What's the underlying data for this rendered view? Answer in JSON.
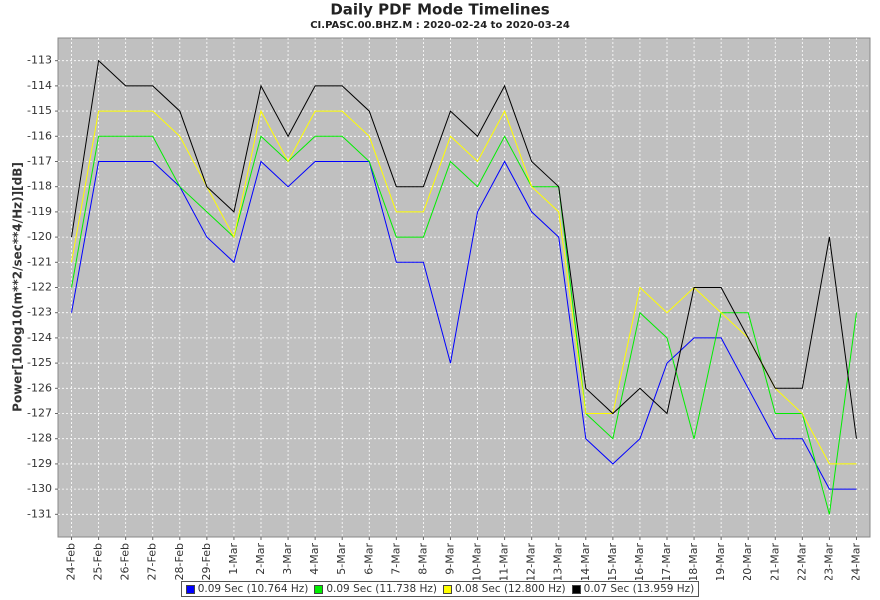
{
  "chart_data": {
    "type": "line",
    "title": "Daily PDF Mode Timelines",
    "subtitle": "CI.PASC.00.BHZ.M : 2020-02-24 to 2020-03-24",
    "y_label": "Power[10log10(m**2/sec**4/Hz)][dB]",
    "categories": [
      "24-Feb",
      "25-Feb",
      "26-Feb",
      "27-Feb",
      "28-Feb",
      "29-Feb",
      "1-Mar",
      "2-Mar",
      "3-Mar",
      "4-Mar",
      "5-Mar",
      "6-Mar",
      "7-Mar",
      "8-Mar",
      "9-Mar",
      "10-Mar",
      "11-Mar",
      "12-Mar",
      "13-Mar",
      "14-Mar",
      "15-Mar",
      "16-Mar",
      "17-Mar",
      "18-Mar",
      "19-Mar",
      "20-Mar",
      "21-Mar",
      "22-Mar",
      "23-Mar",
      "24-Mar"
    ],
    "series": [
      {
        "name": "0.09 Sec (10.764 Hz)",
        "color": "#0000ff",
        "values": [
          -123,
          -117,
          -117,
          -117,
          -118,
          -120,
          -121,
          -117,
          -118,
          -117,
          -117,
          -117,
          -121,
          -121,
          -125,
          -119,
          -117,
          -119,
          -120,
          -128,
          -129,
          -128,
          -125,
          -124,
          -124,
          -126,
          -128,
          -128,
          -130,
          -130
        ]
      },
      {
        "name": "0.09 Sec (11.738 Hz)",
        "color": "#00ee00",
        "values": [
          -122,
          -116,
          -116,
          -116,
          -118,
          -119,
          -120,
          -116,
          -117,
          -116,
          -116,
          -117,
          -120,
          -120,
          -117,
          -118,
          -116,
          -118,
          -118,
          -127,
          -128,
          -123,
          -124,
          -128,
          -123,
          -123,
          -127,
          -127,
          -131,
          -123
        ]
      },
      {
        "name": "0.08 Sec (12.800 Hz)",
        "color": "#ffff00",
        "values": [
          -121,
          -115,
          -115,
          -115,
          -116,
          -118,
          -120,
          -115,
          -117,
          -115,
          -115,
          -116,
          -119,
          -119,
          -116,
          -117,
          -115,
          -118,
          -119,
          -127,
          -127,
          -122,
          -123,
          -122,
          -123,
          -124,
          -126,
          -127,
          -129,
          -129
        ]
      },
      {
        "name": "0.07 Sec (13.959 Hz)",
        "color": "#000000",
        "values": [
          -120,
          -113,
          -114,
          -114,
          -115,
          -118,
          -119,
          -114,
          -116,
          -114,
          -114,
          -115,
          -118,
          -118,
          -115,
          -116,
          -114,
          -117,
          -118,
          -126,
          -127,
          -126,
          -127,
          -122,
          -122,
          -124,
          -126,
          -126,
          -120,
          -128
        ]
      }
    ],
    "ylim": [
      -131.9,
      -112.1
    ],
    "yticks": [
      -131,
      -130,
      -129,
      -128,
      -127,
      -126,
      -125,
      -124,
      -123,
      -122,
      -121,
      -120,
      -119,
      -118,
      -117,
      -116,
      -115,
      -114,
      -113
    ],
    "grid": true
  }
}
